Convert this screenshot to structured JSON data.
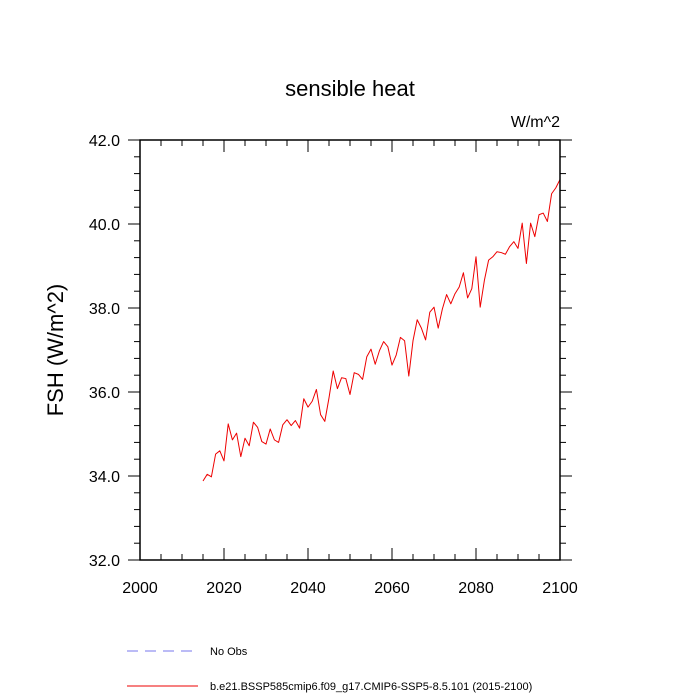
{
  "chart_data": {
    "type": "line",
    "title": "sensible heat",
    "units": "W/m^2",
    "ylabel": "FSH  (W/m^2)",
    "xlabel": "",
    "xlim": [
      2000,
      2100
    ],
    "ylim": [
      32.0,
      42.0
    ],
    "x_ticks": [
      2000,
      2020,
      2040,
      2060,
      2080,
      2100
    ],
    "x_tick_labels": [
      "2000",
      "2020",
      "2040",
      "2060",
      "2080",
      "2100"
    ],
    "y_ticks": [
      32.0,
      34.0,
      36.0,
      38.0,
      40.0,
      42.0
    ],
    "y_tick_labels": [
      "32.0",
      "34.0",
      "36.0",
      "38.0",
      "40.0",
      "42.0"
    ],
    "grid": false,
    "legend_position": "bottom",
    "colors": {
      "obs": "#7777ee",
      "model": "#ee0000"
    },
    "series": [
      {
        "name": "b.e21.BSSP585cmip6.f09_g17.CMIP6-SSP5-8.5.101 (2015-2100)",
        "style": "solid",
        "x": [
          2015,
          2016,
          2017,
          2018,
          2019,
          2020,
          2021,
          2022,
          2023,
          2024,
          2025,
          2026,
          2027,
          2028,
          2029,
          2030,
          2031,
          2032,
          2033,
          2034,
          2035,
          2036,
          2037,
          2038,
          2039,
          2040,
          2041,
          2042,
          2043,
          2044,
          2045,
          2046,
          2047,
          2048,
          2049,
          2050,
          2051,
          2052,
          2053,
          2054,
          2055,
          2056,
          2057,
          2058,
          2059,
          2060,
          2061,
          2062,
          2063,
          2064,
          2065,
          2066,
          2067,
          2068,
          2069,
          2070,
          2071,
          2072,
          2073,
          2074,
          2075,
          2076,
          2077,
          2078,
          2079,
          2080,
          2081,
          2082,
          2083,
          2084,
          2085,
          2086,
          2087,
          2088,
          2089,
          2090,
          2091,
          2092,
          2093,
          2094,
          2095,
          2096,
          2097,
          2098,
          2099,
          2100
        ],
        "values": [
          33.88,
          34.04,
          33.98,
          34.52,
          34.6,
          34.36,
          35.24,
          34.86,
          35.02,
          34.46,
          34.9,
          34.72,
          35.28,
          35.16,
          34.82,
          34.76,
          35.12,
          34.86,
          34.8,
          35.22,
          35.34,
          35.2,
          35.32,
          35.14,
          35.84,
          35.64,
          35.78,
          36.06,
          35.46,
          35.3,
          35.86,
          36.5,
          36.08,
          36.34,
          36.32,
          35.94,
          36.46,
          36.42,
          36.3,
          36.84,
          37.02,
          36.66,
          36.98,
          37.2,
          37.08,
          36.64,
          36.88,
          37.3,
          37.22,
          36.38,
          37.22,
          37.72,
          37.52,
          37.24,
          37.9,
          38.02,
          37.52,
          37.98,
          38.32,
          38.1,
          38.34,
          38.5,
          38.84,
          38.24,
          38.46,
          39.22,
          38.02,
          38.66,
          39.14,
          39.22,
          39.34,
          39.32,
          39.28,
          39.46,
          39.58,
          39.42,
          40.02,
          39.06,
          40.02,
          39.7,
          40.22,
          40.26,
          40.06,
          40.72,
          40.86,
          41.06
        ]
      }
    ]
  },
  "legend": {
    "items": [
      {
        "label": "No Obs",
        "style": "dashed",
        "color": "#7777ee"
      },
      {
        "label": "b.e21.BSSP585cmip6.f09_g17.CMIP6-SSP5-8.5.101 (2015-2100)",
        "style": "solid",
        "color": "#ee0000"
      }
    ]
  }
}
